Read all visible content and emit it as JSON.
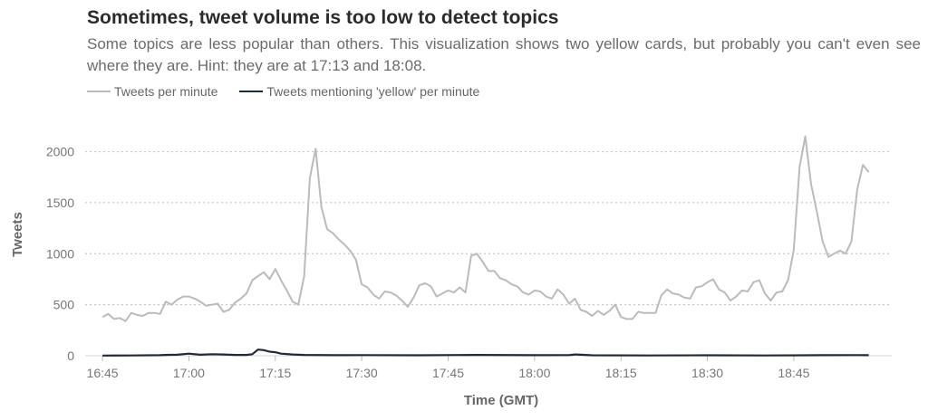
{
  "title": "Sometimes, tweet volume is too low to detect topics",
  "subtitle": "Some topics are less popular than others. This visualization shows two yellow cards, but probably you can't even see where they are. Hint: they are at 17:13 and 18:08.",
  "chart_data": {
    "type": "line",
    "xlabel": "Time (GMT)",
    "ylabel": "Tweets",
    "xlim": [
      "16:42",
      "19:02"
    ],
    "ylim": [
      0,
      2200
    ],
    "yticks": [
      0,
      500,
      1000,
      1500,
      2000
    ],
    "xticks": [
      "16:45",
      "17:00",
      "17:15",
      "17:30",
      "17:45",
      "18:00",
      "18:15",
      "18:30",
      "18:45"
    ],
    "grid": "horizontal-dotted",
    "legend_position": "top-left",
    "series": [
      {
        "name": "Tweets per minute",
        "color": "#bbbbbb",
        "points": [
          [
            "16:45",
            380
          ],
          [
            "16:46",
            410
          ],
          [
            "16:47",
            360
          ],
          [
            "16:48",
            370
          ],
          [
            "16:49",
            340
          ],
          [
            "16:50",
            420
          ],
          [
            "16:51",
            400
          ],
          [
            "16:52",
            390
          ],
          [
            "16:53",
            420
          ],
          [
            "16:54",
            420
          ],
          [
            "16:55",
            410
          ],
          [
            "16:56",
            530
          ],
          [
            "16:57",
            500
          ],
          [
            "16:58",
            550
          ],
          [
            "16:59",
            580
          ],
          [
            "17:00",
            580
          ],
          [
            "17:01",
            560
          ],
          [
            "17:02",
            530
          ],
          [
            "17:03",
            490
          ],
          [
            "17:04",
            500
          ],
          [
            "17:05",
            510
          ],
          [
            "17:06",
            430
          ],
          [
            "17:07",
            450
          ],
          [
            "17:08",
            520
          ],
          [
            "17:09",
            560
          ],
          [
            "17:10",
            610
          ],
          [
            "17:11",
            740
          ],
          [
            "17:12",
            780
          ],
          [
            "17:13",
            820
          ],
          [
            "17:14",
            750
          ],
          [
            "17:15",
            850
          ],
          [
            "17:16",
            740
          ],
          [
            "17:17",
            640
          ],
          [
            "17:18",
            530
          ],
          [
            "17:19",
            500
          ],
          [
            "17:20",
            780
          ],
          [
            "17:21",
            1740
          ],
          [
            "17:22",
            2030
          ],
          [
            "17:23",
            1460
          ],
          [
            "17:24",
            1240
          ],
          [
            "17:25",
            1200
          ],
          [
            "17:26",
            1140
          ],
          [
            "17:27",
            1090
          ],
          [
            "17:28",
            1030
          ],
          [
            "17:29",
            940
          ],
          [
            "17:30",
            700
          ],
          [
            "17:31",
            670
          ],
          [
            "17:32",
            600
          ],
          [
            "17:33",
            560
          ],
          [
            "17:34",
            630
          ],
          [
            "17:35",
            620
          ],
          [
            "17:36",
            590
          ],
          [
            "17:37",
            540
          ],
          [
            "17:38",
            480
          ],
          [
            "17:39",
            570
          ],
          [
            "17:40",
            690
          ],
          [
            "17:41",
            710
          ],
          [
            "17:42",
            680
          ],
          [
            "17:43",
            580
          ],
          [
            "17:44",
            610
          ],
          [
            "17:45",
            640
          ],
          [
            "17:46",
            620
          ],
          [
            "17:47",
            670
          ],
          [
            "17:48",
            620
          ],
          [
            "17:49",
            980
          ],
          [
            "17:50",
            1000
          ],
          [
            "17:51",
            920
          ],
          [
            "17:52",
            830
          ],
          [
            "17:53",
            830
          ],
          [
            "17:54",
            760
          ],
          [
            "17:55",
            740
          ],
          [
            "17:56",
            700
          ],
          [
            "17:57",
            680
          ],
          [
            "17:58",
            620
          ],
          [
            "17:59",
            600
          ],
          [
            "18:00",
            640
          ],
          [
            "18:01",
            630
          ],
          [
            "18:02",
            580
          ],
          [
            "18:03",
            560
          ],
          [
            "18:04",
            650
          ],
          [
            "18:05",
            600
          ],
          [
            "18:06",
            510
          ],
          [
            "18:07",
            560
          ],
          [
            "18:08",
            450
          ],
          [
            "18:09",
            430
          ],
          [
            "18:10",
            390
          ],
          [
            "18:11",
            440
          ],
          [
            "18:12",
            400
          ],
          [
            "18:13",
            440
          ],
          [
            "18:14",
            500
          ],
          [
            "18:15",
            380
          ],
          [
            "18:16",
            360
          ],
          [
            "18:17",
            360
          ],
          [
            "18:18",
            430
          ],
          [
            "18:19",
            420
          ],
          [
            "18:20",
            420
          ],
          [
            "18:21",
            420
          ],
          [
            "18:22",
            590
          ],
          [
            "18:23",
            650
          ],
          [
            "18:24",
            610
          ],
          [
            "18:25",
            600
          ],
          [
            "18:26",
            570
          ],
          [
            "18:27",
            560
          ],
          [
            "18:28",
            670
          ],
          [
            "18:29",
            680
          ],
          [
            "18:30",
            720
          ],
          [
            "18:31",
            750
          ],
          [
            "18:32",
            650
          ],
          [
            "18:33",
            620
          ],
          [
            "18:34",
            540
          ],
          [
            "18:35",
            580
          ],
          [
            "18:36",
            640
          ],
          [
            "18:37",
            630
          ],
          [
            "18:38",
            720
          ],
          [
            "18:39",
            740
          ],
          [
            "18:40",
            610
          ],
          [
            "18:41",
            540
          ],
          [
            "18:42",
            620
          ],
          [
            "18:43",
            630
          ],
          [
            "18:44",
            740
          ],
          [
            "18:45",
            1040
          ],
          [
            "18:46",
            1850
          ],
          [
            "18:47",
            2150
          ],
          [
            "18:48",
            1680
          ],
          [
            "18:49",
            1410
          ],
          [
            "18:50",
            1120
          ],
          [
            "18:51",
            970
          ],
          [
            "18:52",
            1000
          ],
          [
            "18:53",
            1030
          ],
          [
            "18:54",
            1000
          ],
          [
            "18:55",
            1120
          ],
          [
            "18:56",
            1630
          ],
          [
            "18:57",
            1870
          ],
          [
            "18:58",
            1800
          ]
        ]
      },
      {
        "name": "Tweets mentioning 'yellow' per minute",
        "color": "#1f2a36",
        "points": [
          [
            "16:45",
            2
          ],
          [
            "16:50",
            3
          ],
          [
            "16:55",
            5
          ],
          [
            "16:56",
            8
          ],
          [
            "16:58",
            10
          ],
          [
            "17:00",
            20
          ],
          [
            "17:02",
            10
          ],
          [
            "17:04",
            15
          ],
          [
            "17:06",
            12
          ],
          [
            "17:08",
            8
          ],
          [
            "17:10",
            8
          ],
          [
            "17:11",
            15
          ],
          [
            "17:12",
            60
          ],
          [
            "17:13",
            55
          ],
          [
            "17:14",
            40
          ],
          [
            "17:15",
            35
          ],
          [
            "17:16",
            20
          ],
          [
            "17:18",
            12
          ],
          [
            "17:20",
            8
          ],
          [
            "17:25",
            5
          ],
          [
            "17:30",
            6
          ],
          [
            "17:40",
            4
          ],
          [
            "17:50",
            8
          ],
          [
            "18:00",
            5
          ],
          [
            "18:06",
            6
          ],
          [
            "18:07",
            12
          ],
          [
            "18:08",
            10
          ],
          [
            "18:10",
            4
          ],
          [
            "18:20",
            3
          ],
          [
            "18:30",
            4
          ],
          [
            "18:40",
            3
          ],
          [
            "18:50",
            5
          ],
          [
            "18:56",
            6
          ],
          [
            "18:58",
            5
          ]
        ]
      }
    ]
  }
}
